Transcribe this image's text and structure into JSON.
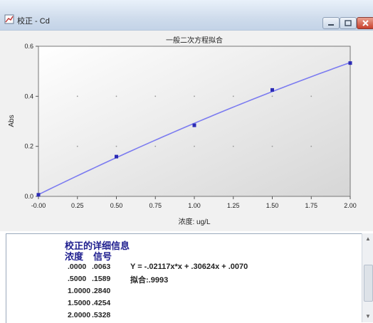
{
  "window": {
    "title": "校正 - Cd",
    "colors": {
      "titlebar": "#cfdcec",
      "close": "#c8402c"
    }
  },
  "chart_data": {
    "type": "scatter",
    "title": "一般二次方程拟合",
    "xlabel": "浓度: ug/L",
    "ylabel": "Abs",
    "xlim": [
      0,
      2
    ],
    "ylim": [
      0,
      0.6
    ],
    "xticks": [
      "-0.00",
      "0.25",
      "0.50",
      "0.75",
      "1.00",
      "1.25",
      "1.50",
      "1.75",
      "2.00"
    ],
    "yticks": [
      "0.0",
      "0.2",
      "0.4",
      "0.6"
    ],
    "grid": true,
    "points": [
      {
        "x": 0.0,
        "y": 0.0063
      },
      {
        "x": 0.5,
        "y": 0.1589
      },
      {
        "x": 1.0,
        "y": 0.284
      },
      {
        "x": 1.5,
        "y": 0.4254
      },
      {
        "x": 2.0,
        "y": 0.5328
      }
    ],
    "fit": {
      "a": -0.02117,
      "b": 0.30624,
      "c": 0.007
    },
    "colors": {
      "line": "#7b7bf0",
      "points": "#2b2bb5",
      "plot_bg": "#ffffff"
    }
  },
  "details": {
    "title": "校正的详细信息",
    "col_conc": "浓度",
    "col_signal": "信号",
    "rows": [
      {
        "conc": ".0000",
        "signal": ".0063"
      },
      {
        "conc": ".5000",
        "signal": ".1589"
      },
      {
        "conc": "1.0000",
        "signal": ".2840"
      },
      {
        "conc": "1.5000",
        "signal": ".4254"
      },
      {
        "conc": "2.0000",
        "signal": ".5328"
      }
    ],
    "equation": "Y = -.02117x*x + .30624x + .0070",
    "fit_label": "拟合:.9993"
  }
}
